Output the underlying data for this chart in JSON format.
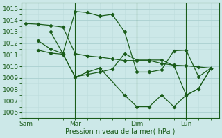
{
  "bg_color": "#cce8e8",
  "grid_major_color": "#aad0d0",
  "grid_minor_color": "#bcdcdc",
  "line_color": "#1a5c1a",
  "xlabel": "Pression niveau de la mer( hPa )",
  "ylim": [
    1005.5,
    1015.5
  ],
  "yticks": [
    1006,
    1007,
    1008,
    1009,
    1010,
    1011,
    1012,
    1013,
    1014,
    1015
  ],
  "xtick_labels": [
    "Sam",
    "Mar",
    "Dim",
    "Lun"
  ],
  "xtick_positions": [
    0,
    12,
    27,
    39
  ],
  "vline_positions": [
    0,
    12,
    27,
    39
  ],
  "xlim": [
    -1,
    47
  ],
  "series": [
    {
      "x": [
        0,
        3,
        6,
        9,
        12,
        15,
        18,
        21,
        24,
        27,
        30,
        33,
        36,
        39,
        42,
        45
      ],
      "y": [
        1013.7,
        1013.65,
        1013.55,
        1013.4,
        1011.1,
        1010.9,
        1010.8,
        1010.65,
        1010.5,
        1010.5,
        1010.5,
        1010.25,
        1010.1,
        1010.05,
        1009.95,
        1009.85
      ]
    },
    {
      "x": [
        3,
        6,
        9,
        12,
        15,
        18,
        21,
        24,
        27,
        30,
        33,
        36,
        39,
        42,
        45
      ],
      "y": [
        1012.2,
        1011.5,
        1011.1,
        1014.75,
        1014.65,
        1014.35,
        1014.5,
        1013.0,
        1009.5,
        1009.5,
        1009.7,
        1011.35,
        1011.4,
        1009.1,
        1009.85
      ]
    },
    {
      "x": [
        3,
        6,
        9,
        12,
        15,
        18,
        21,
        24,
        27,
        30,
        33,
        36,
        39,
        42,
        45
      ],
      "y": [
        1011.4,
        1011.15,
        1011.05,
        1009.1,
        1009.3,
        1009.5,
        1009.75,
        1011.1,
        1010.55,
        1010.55,
        1010.55,
        1010.05,
        1007.5,
        1008.05,
        1009.85
      ]
    },
    {
      "x": [
        6,
        9,
        12,
        15,
        18,
        24,
        27,
        30,
        33,
        36,
        39,
        42,
        45
      ],
      "y": [
        1013.0,
        1011.1,
        1009.05,
        1009.5,
        1009.85,
        1007.5,
        1006.5,
        1006.5,
        1007.5,
        1006.5,
        1007.5,
        1008.05,
        1009.85
      ]
    }
  ]
}
